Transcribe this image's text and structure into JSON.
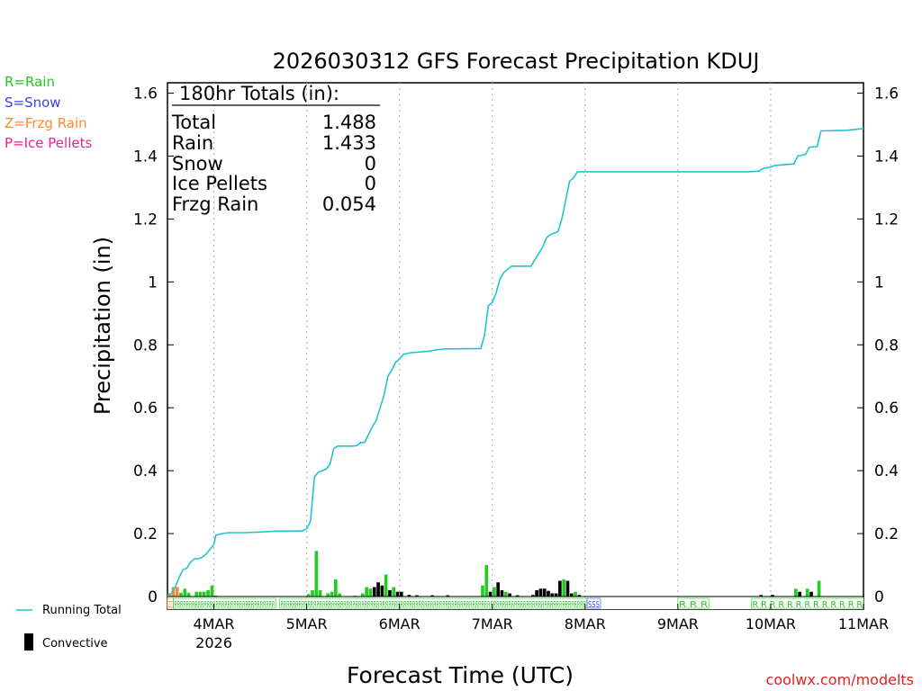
{
  "legend": {
    "rain": "R=Rain",
    "snow": "S=Snow",
    "frzg": "Z=Frzg Rain",
    "ice": "P=Ice Pellets",
    "running_total": "Running Total",
    "convective": "Convective"
  },
  "colors": {
    "rain": "#22cc22",
    "snow": "#3344ee",
    "frzg": "#ff8833",
    "ice": "#ee2288",
    "running": "#22c4cc",
    "convective": "#000000",
    "watermark": "#dd2222"
  },
  "totals": {
    "header": "180hr Totals (in):",
    "rows": [
      {
        "label": "Total",
        "value": "1.488"
      },
      {
        "label": "Rain",
        "value": "1.433"
      },
      {
        "label": "Snow",
        "value": "0"
      },
      {
        "label": "Ice Pellets",
        "value": "0"
      },
      {
        "label": "Frzg Rain",
        "value": "0.054"
      }
    ]
  },
  "watermark": "coolwx.com/modelts",
  "chart_data": {
    "type": "bar+line",
    "title": "2026030312 GFS Forecast Precipitation KDUJ",
    "xlabel": "Forecast Time (UTC)",
    "ylabel": "Precipitation (in)",
    "ylim": [
      0,
      1.65
    ],
    "yticks": [
      0,
      0.2,
      0.4,
      0.6,
      0.8,
      1,
      1.2,
      1.4,
      1.6
    ],
    "ytick_labels": [
      "0",
      "0.2",
      "0.4",
      "0.6",
      "0.8",
      "1",
      "1.2",
      "1.4",
      "1.6"
    ],
    "xlim_hours": [
      0,
      180
    ],
    "x_days": [
      {
        "label": "4MAR",
        "hour": 12
      },
      {
        "label": "5MAR",
        "hour": 36
      },
      {
        "label": "6MAR",
        "hour": 60
      },
      {
        "label": "7MAR",
        "hour": 84
      },
      {
        "label": "8MAR",
        "hour": 108
      },
      {
        "label": "9MAR",
        "hour": 132
      },
      {
        "label": "10MAR",
        "hour": 156
      },
      {
        "label": "11MAR",
        "hour": 180
      }
    ],
    "year_label": "2026",
    "running_total": [
      [
        0,
        0
      ],
      [
        1,
        0.01
      ],
      [
        2,
        0.03
      ],
      [
        3,
        0.06
      ],
      [
        4,
        0.085
      ],
      [
        5,
        0.09
      ],
      [
        6,
        0.11
      ],
      [
        7,
        0.12
      ],
      [
        8,
        0.12
      ],
      [
        9,
        0.125
      ],
      [
        10,
        0.135
      ],
      [
        11,
        0.15
      ],
      [
        12,
        0.165
      ],
      [
        12.5,
        0.195
      ],
      [
        14,
        0.2
      ],
      [
        16,
        0.203
      ],
      [
        20,
        0.203
      ],
      [
        24,
        0.205
      ],
      [
        28,
        0.208
      ],
      [
        32,
        0.208
      ],
      [
        35,
        0.209
      ],
      [
        36,
        0.215
      ],
      [
        37,
        0.24
      ],
      [
        38,
        0.38
      ],
      [
        39,
        0.395
      ],
      [
        41,
        0.405
      ],
      [
        42,
        0.42
      ],
      [
        43,
        0.47
      ],
      [
        44,
        0.478
      ],
      [
        48,
        0.478
      ],
      [
        49,
        0.48
      ],
      [
        50,
        0.49
      ],
      [
        51,
        0.49
      ],
      [
        52,
        0.515
      ],
      [
        53,
        0.54
      ],
      [
        54,
        0.56
      ],
      [
        55,
        0.6
      ],
      [
        56,
        0.64
      ],
      [
        57,
        0.7
      ],
      [
        58,
        0.72
      ],
      [
        59,
        0.745
      ],
      [
        60,
        0.755
      ],
      [
        61,
        0.77
      ],
      [
        63,
        0.775
      ],
      [
        66,
        0.778
      ],
      [
        68,
        0.78
      ],
      [
        70,
        0.785
      ],
      [
        72,
        0.787
      ],
      [
        81,
        0.788
      ],
      [
        82,
        0.83
      ],
      [
        83,
        0.925
      ],
      [
        84,
        0.935
      ],
      [
        85,
        0.965
      ],
      [
        86,
        1.01
      ],
      [
        87,
        1.03
      ],
      [
        88,
        1.04
      ],
      [
        89,
        1.05
      ],
      [
        94,
        1.05
      ],
      [
        95,
        1.07
      ],
      [
        97,
        1.11
      ],
      [
        98,
        1.14
      ],
      [
        99,
        1.15
      ],
      [
        101,
        1.16
      ],
      [
        102,
        1.2
      ],
      [
        103,
        1.26
      ],
      [
        104,
        1.32
      ],
      [
        105,
        1.33
      ],
      [
        106,
        1.35
      ],
      [
        110,
        1.35
      ],
      [
        115,
        1.35
      ],
      [
        120,
        1.35
      ],
      [
        130,
        1.35
      ],
      [
        140,
        1.35
      ],
      [
        150,
        1.35
      ],
      [
        153,
        1.352
      ],
      [
        154,
        1.36
      ],
      [
        156,
        1.365
      ],
      [
        157,
        1.37
      ],
      [
        162,
        1.375
      ],
      [
        163,
        1.4
      ],
      [
        165,
        1.405
      ],
      [
        166,
        1.428
      ],
      [
        168,
        1.43
      ],
      [
        169,
        1.48
      ],
      [
        176,
        1.482
      ],
      [
        180,
        1.488
      ]
    ],
    "bars_hour_value_kind": [
      [
        0.5,
        0.01,
        "frzg"
      ],
      [
        1.5,
        0.03,
        "frzg"
      ],
      [
        2.5,
        0.03,
        "frzg"
      ],
      [
        3.5,
        0.012,
        "rain"
      ],
      [
        4.5,
        0.025,
        "rain"
      ],
      [
        5.5,
        0.012,
        "rain"
      ],
      [
        7.5,
        0.015,
        "rain"
      ],
      [
        8.5,
        0.015,
        "rain"
      ],
      [
        9.5,
        0.015,
        "rain"
      ],
      [
        10.5,
        0.02,
        "rain"
      ],
      [
        11.5,
        0.035,
        "rain"
      ],
      [
        12.5,
        0.003,
        "rain"
      ],
      [
        36.5,
        0.008,
        "rain"
      ],
      [
        37.5,
        0.02,
        "rain"
      ],
      [
        38.5,
        0.145,
        "rain"
      ],
      [
        39.5,
        0.02,
        "rain"
      ],
      [
        41.5,
        0.01,
        "rain"
      ],
      [
        42.5,
        0.015,
        "rain"
      ],
      [
        43.5,
        0.055,
        "rain"
      ],
      [
        44.5,
        0.01,
        "rain"
      ],
      [
        48.5,
        0.003,
        "rain"
      ],
      [
        50.5,
        0.01,
        "rain"
      ],
      [
        51.5,
        0.03,
        "rain"
      ],
      [
        52.5,
        0.025,
        "rain"
      ],
      [
        53.5,
        0.03,
        "convective"
      ],
      [
        54.5,
        0.045,
        "convective"
      ],
      [
        55.5,
        0.035,
        "convective"
      ],
      [
        56.5,
        0.07,
        "rain"
      ],
      [
        57.5,
        0.02,
        "convective"
      ],
      [
        58.5,
        0.03,
        "rain"
      ],
      [
        59.5,
        0.015,
        "convective"
      ],
      [
        60.5,
        0.015,
        "convective"
      ],
      [
        62.5,
        0.005,
        "convective"
      ],
      [
        64.5,
        0.004,
        "convective"
      ],
      [
        68.5,
        0.004,
        "convective"
      ],
      [
        72.5,
        0.004,
        "convective"
      ],
      [
        81.5,
        0.035,
        "rain"
      ],
      [
        82.5,
        0.1,
        "rain"
      ],
      [
        83.5,
        0.015,
        "convective"
      ],
      [
        84.5,
        0.03,
        "rain"
      ],
      [
        85.5,
        0.045,
        "convective"
      ],
      [
        86.5,
        0.02,
        "convective"
      ],
      [
        87.5,
        0.015,
        "rain"
      ],
      [
        88.5,
        0.01,
        "convective"
      ],
      [
        90.5,
        0.004,
        "convective"
      ],
      [
        94.5,
        0.005,
        "convective"
      ],
      [
        95.5,
        0.02,
        "convective"
      ],
      [
        96.5,
        0.025,
        "convective"
      ],
      [
        97.5,
        0.025,
        "convective"
      ],
      [
        98.5,
        0.018,
        "convective"
      ],
      [
        99.5,
        0.01,
        "convective"
      ],
      [
        100.5,
        0.01,
        "convective"
      ],
      [
        101.5,
        0.05,
        "convective"
      ],
      [
        102.5,
        0.055,
        "rain"
      ],
      [
        103.5,
        0.05,
        "convective"
      ],
      [
        104.5,
        0.01,
        "convective"
      ],
      [
        105.5,
        0.015,
        "rain"
      ],
      [
        106.5,
        0.005,
        "convective"
      ],
      [
        153.5,
        0.005,
        "convective"
      ],
      [
        156.5,
        0.005,
        "convective"
      ],
      [
        162.5,
        0.025,
        "rain"
      ],
      [
        163.5,
        0.015,
        "convective"
      ],
      [
        165.5,
        0.025,
        "rain"
      ],
      [
        166.5,
        0.015,
        "convective"
      ],
      [
        168.5,
        0.05,
        "rain"
      ]
    ],
    "ptype_strip": [
      {
        "start": 0,
        "end": 1.5,
        "kind": "frzg",
        "text": "ZZ"
      },
      {
        "start": 1.5,
        "end": 28,
        "kind": "rain",
        "text": "RRRRRRRRRRRRRRRRRRRRRRRRRRRRRRRRRR"
      },
      {
        "start": 29,
        "end": 108.5,
        "kind": "rain",
        "text": "RRRRRRRRRRRRRRRRRRRRRRRRRRRRRRRRRRRRRRRRRRRRRRRRRRRRRRRRRRRRRRRRRRRRRRRRRRRRRRRRRRRRRRRRRRRRRRRRRRRRRR"
      },
      {
        "start": 108.5,
        "end": 112,
        "kind": "snow",
        "text": "SSS"
      },
      {
        "start": 132,
        "end": 140,
        "kind": "rain",
        "text": "R R R"
      },
      {
        "start": 151,
        "end": 180,
        "kind": "rain",
        "text": "R R R R R R R R R R R R R"
      }
    ]
  }
}
